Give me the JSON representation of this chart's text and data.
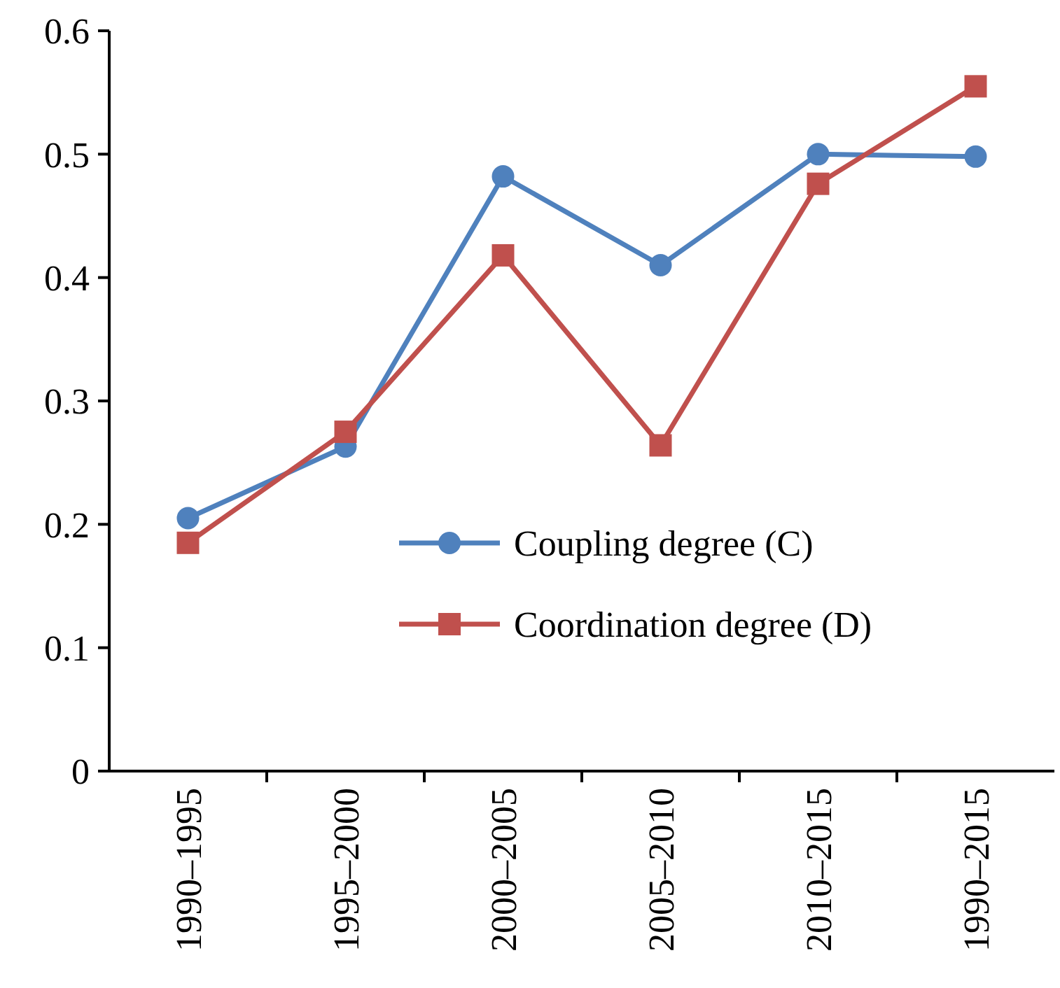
{
  "chart_data": {
    "type": "line",
    "categories": [
      "1990–1995",
      "1995–2000",
      "2000–2005",
      "2005–2010",
      "2010–2015",
      "1990–2015"
    ],
    "series": [
      {
        "name": "Coupling degree (C)",
        "color": "#4f81bd",
        "marker": "circle",
        "values": [
          0.205,
          0.263,
          0.482,
          0.41,
          0.5,
          0.498
        ]
      },
      {
        "name": "Coordination degree (D)",
        "color": "#c0504d",
        "marker": "square",
        "values": [
          0.185,
          0.275,
          0.418,
          0.264,
          0.476,
          0.555
        ]
      }
    ],
    "ylim": [
      0,
      0.6
    ],
    "yticks": [
      0,
      0.1,
      0.2,
      0.3,
      0.4,
      0.5,
      0.6
    ],
    "grid": false,
    "legend": "bottom right"
  }
}
